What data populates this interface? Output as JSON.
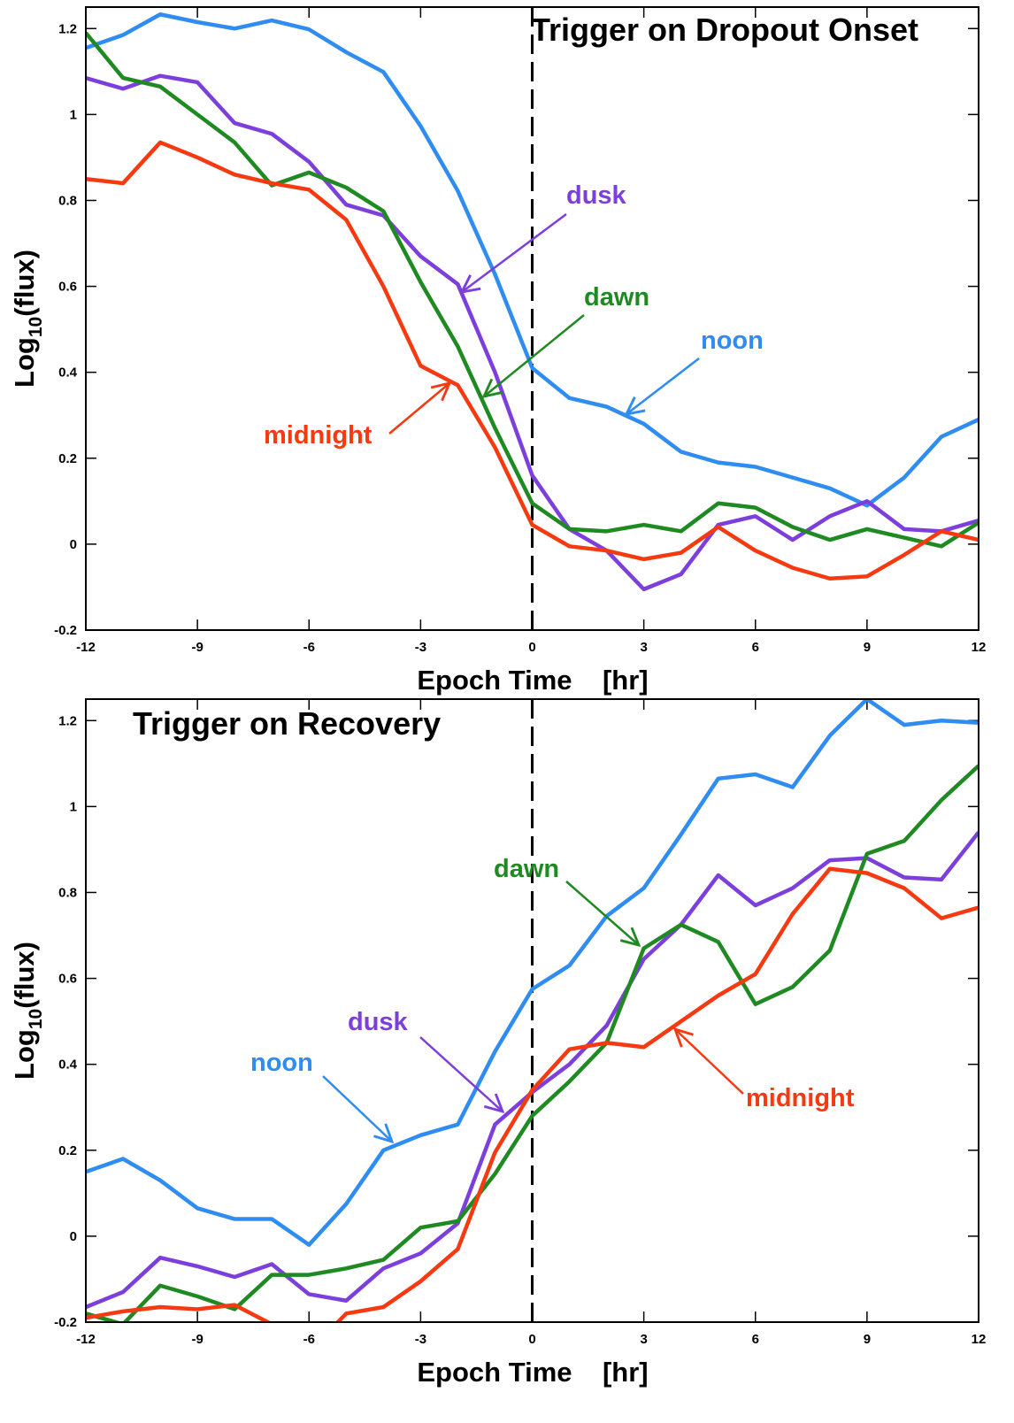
{
  "chart_data": [
    {
      "type": "line",
      "title": "Trigger on Dropout Onset",
      "x_label": "Epoch Time    [hr]",
      "y_label": {
        "base": "Log",
        "sub": "10",
        "rest": "(flux)"
      },
      "x": [
        -12,
        -11,
        -10,
        -9,
        -8,
        -7,
        -6,
        -5,
        -4,
        -3,
        -2,
        -1,
        0,
        1,
        2,
        3,
        4,
        5,
        6,
        7,
        8,
        9,
        10,
        11,
        12
      ],
      "xlim": [
        -12,
        12
      ],
      "xticks": [
        -12,
        -9,
        -6,
        -3,
        0,
        3,
        6,
        9,
        12
      ],
      "ylim": [
        -0.2,
        1.25
      ],
      "yticks": [
        -0.2,
        0,
        0.2,
        0.4,
        0.6,
        0.8,
        1,
        1.2
      ],
      "series": [
        {
          "name": "noon",
          "color": "#2f8cf0",
          "values": [
            1.155,
            1.185,
            1.233,
            1.215,
            1.2,
            1.219,
            1.198,
            1.145,
            1.099,
            0.973,
            0.822,
            0.628,
            0.41,
            0.34,
            0.32,
            0.28,
            0.215,
            0.19,
            0.18,
            0.155,
            0.13,
            0.09,
            0.155,
            0.25,
            0.29
          ]
        },
        {
          "name": "dusk",
          "color": "#7d3fdc",
          "values": [
            1.085,
            1.06,
            1.09,
            1.075,
            0.98,
            0.955,
            0.89,
            0.79,
            0.765,
            0.67,
            0.605,
            0.4,
            0.16,
            0.035,
            -0.015,
            -0.105,
            -0.07,
            0.045,
            0.065,
            0.01,
            0.065,
            0.1,
            0.035,
            0.03,
            0.055
          ]
        },
        {
          "name": "dawn",
          "color": "#1f8a22",
          "values": [
            1.19,
            1.085,
            1.065,
            1.0,
            0.935,
            0.835,
            0.865,
            0.83,
            0.775,
            0.61,
            0.46,
            0.27,
            0.095,
            0.035,
            0.03,
            0.045,
            0.03,
            0.095,
            0.085,
            0.04,
            0.01,
            0.035,
            0.015,
            -0.005,
            0.05
          ]
        },
        {
          "name": "midnight",
          "color": "#f53a12",
          "values": [
            0.85,
            0.84,
            0.935,
            0.9,
            0.86,
            0.84,
            0.825,
            0.755,
            0.6,
            0.415,
            0.37,
            0.225,
            0.045,
            -0.005,
            -0.015,
            -0.035,
            -0.02,
            0.04,
            -0.015,
            -0.055,
            -0.08,
            -0.075,
            -0.025,
            0.03,
            0.01
          ]
        }
      ]
    },
    {
      "type": "line",
      "title": "Trigger on Recovery",
      "x_label": "Epoch Time    [hr]",
      "y_label": {
        "base": "Log",
        "sub": "10",
        "rest": "(flux)"
      },
      "x": [
        -12,
        -11,
        -10,
        -9,
        -8,
        -7,
        -6,
        -5,
        -4,
        -3,
        -2,
        -1,
        0,
        1,
        2,
        3,
        4,
        5,
        6,
        7,
        8,
        9,
        10,
        11,
        12
      ],
      "xlim": [
        -12,
        12
      ],
      "xticks": [
        -12,
        -9,
        -6,
        -3,
        0,
        3,
        6,
        9,
        12
      ],
      "ylim": [
        -0.2,
        1.25
      ],
      "yticks": [
        -0.2,
        0,
        0.2,
        0.4,
        0.6,
        0.8,
        1,
        1.2
      ],
      "series": [
        {
          "name": "noon",
          "color": "#2f8cf0",
          "values": [
            0.15,
            0.18,
            0.13,
            0.065,
            0.04,
            0.04,
            -0.02,
            0.075,
            0.2,
            0.235,
            0.26,
            0.43,
            0.575,
            0.63,
            0.745,
            0.81,
            0.935,
            1.065,
            1.075,
            1.045,
            1.165,
            1.25,
            1.19,
            1.2,
            1.195
          ]
        },
        {
          "name": "dusk",
          "color": "#7d3fdc",
          "values": [
            -0.165,
            -0.13,
            -0.05,
            -0.07,
            -0.095,
            -0.065,
            -0.135,
            -0.15,
            -0.075,
            -0.04,
            0.03,
            0.26,
            0.335,
            0.4,
            0.49,
            0.645,
            0.725,
            0.84,
            0.77,
            0.81,
            0.875,
            0.88,
            0.835,
            0.83,
            0.94
          ]
        },
        {
          "name": "dawn",
          "color": "#1f8a22",
          "values": [
            -0.18,
            -0.205,
            -0.115,
            -0.14,
            -0.17,
            -0.09,
            -0.09,
            -0.075,
            -0.055,
            0.02,
            0.035,
            0.145,
            0.28,
            0.36,
            0.45,
            0.67,
            0.725,
            0.685,
            0.54,
            0.58,
            0.665,
            0.89,
            0.92,
            1.015,
            1.095
          ]
        },
        {
          "name": "midnight",
          "color": "#f53a12",
          "values": [
            -0.19,
            -0.175,
            -0.165,
            -0.17,
            -0.16,
            -0.205,
            -0.27,
            -0.18,
            -0.165,
            -0.105,
            -0.03,
            0.195,
            0.34,
            0.435,
            0.45,
            0.44,
            0.5,
            0.56,
            0.61,
            0.75,
            0.855,
            0.845,
            0.81,
            0.74,
            0.765
          ]
        }
      ]
    }
  ]
}
